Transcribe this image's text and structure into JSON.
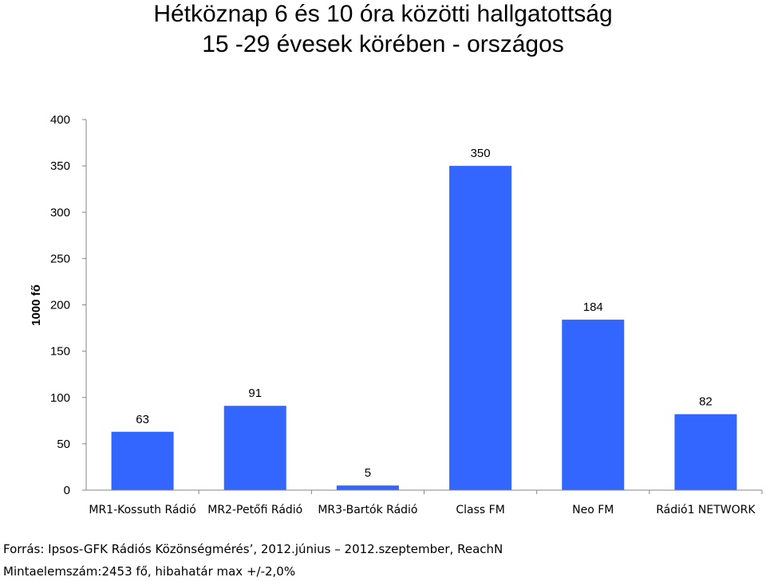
{
  "chart_data": {
    "type": "bar",
    "title": "Hétköznap 6 és 10 óra közötti hallgatottság",
    "subtitle": "15 -29 évesek körében - országos",
    "ylabel": "1000 fő",
    "xlabel": "",
    "ylim": [
      0,
      400
    ],
    "yticks": [
      "0",
      "50",
      "100",
      "150",
      "200",
      "250",
      "300",
      "350",
      "400"
    ],
    "grid": false,
    "legend": "none",
    "bar_color": "#3366ff",
    "categories": [
      "MR1-Kossuth Rádió",
      "MR2-Petőfi Rádió",
      "MR3-Bartók Rádió",
      "Class FM",
      "Neo FM",
      "Rádió1 NETWORK"
    ],
    "values": [
      63,
      91,
      5,
      350,
      184,
      82
    ],
    "value_labels": [
      "63",
      "91",
      "5",
      "350",
      "184",
      "82"
    ]
  },
  "footer": {
    "source": "Forrás: Ipsos-GFK  Rádiós Közönségmérés’, 2012.június – 2012.szeptember, ReachN",
    "sample": "Mintaelemszám:2453 fő, hibahatár max +/-2,0%"
  }
}
